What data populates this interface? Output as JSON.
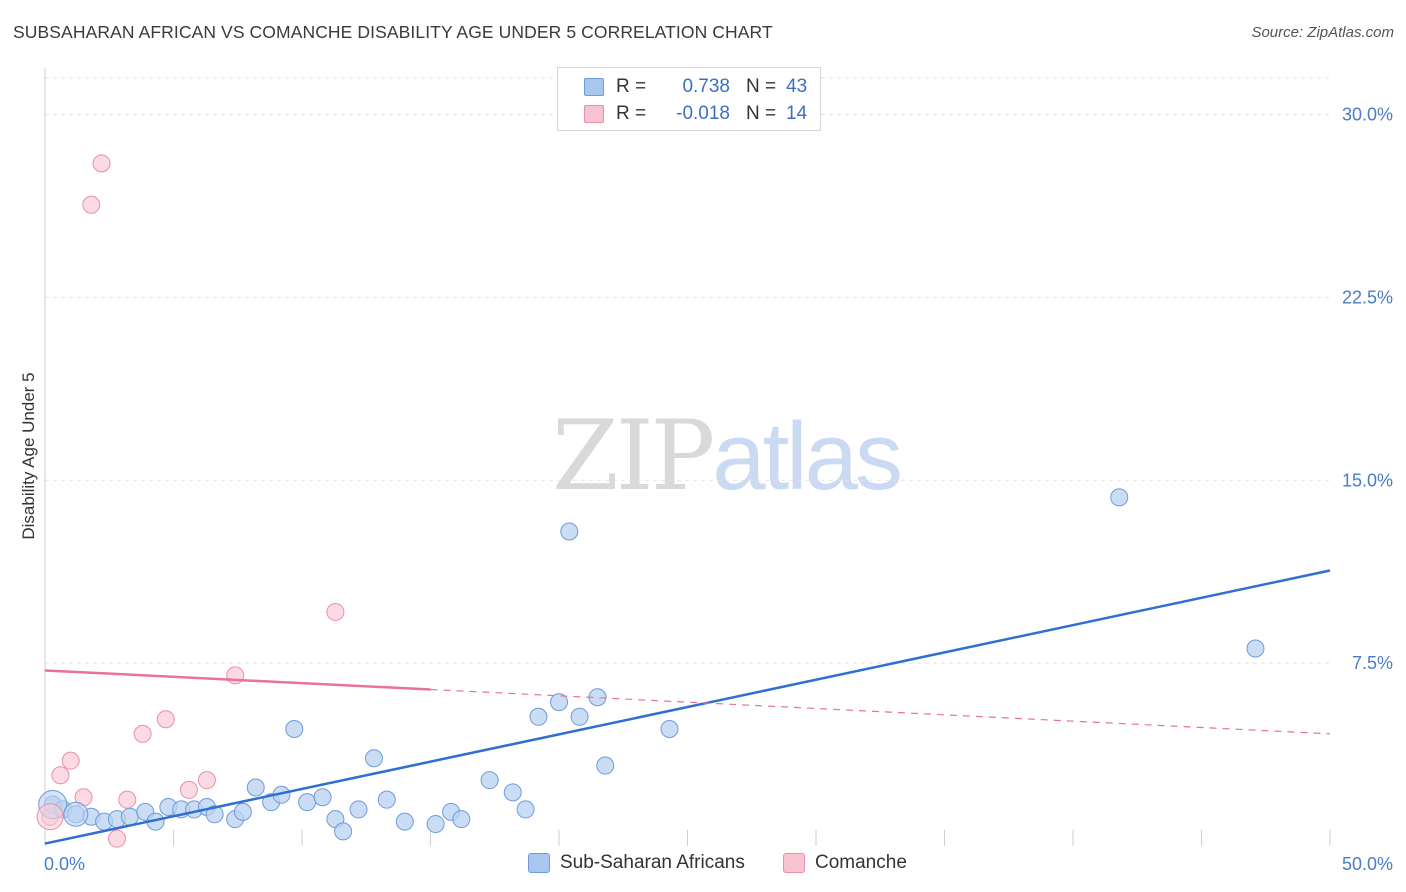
{
  "header": {
    "title": "SUBSAHARAN AFRICAN VS COMANCHE DISABILITY AGE UNDER 5 CORRELATION CHART",
    "source": "Source: ZipAtlas.com"
  },
  "watermark": {
    "zip": "ZIP",
    "atlas": "atlas"
  },
  "legend": {
    "rows": [
      {
        "r_label": "R =",
        "r_value": "0.738",
        "n_label": "N =",
        "n_value": "43",
        "color": "#a8c6ee",
        "border": "#6f9bd9"
      },
      {
        "r_label": "R =",
        "r_value": "-0.018",
        "n_label": "N =",
        "n_value": "14",
        "color": "#f7c3d1",
        "border": "#e98fa9"
      }
    ]
  },
  "bottom_legend": [
    {
      "label": "Sub-Saharan Africans",
      "color": "#a8c6ee",
      "border": "#6f9bd9"
    },
    {
      "label": "Comanche",
      "color": "#f7c3d1",
      "border": "#e98fa9"
    }
  ],
  "colors": {
    "blue_line": "#2f6fd1",
    "pink_line": "#e8729a",
    "blue_fill": "#b9d2f2",
    "blue_stroke": "#6f9bd9",
    "pink_fill": "#f9cdd9",
    "pink_stroke": "#e98fa9",
    "grid": "#e3e3e3",
    "tick_text": "#4a7cc9"
  },
  "chart_data": {
    "type": "scatter",
    "title": "SUBSAHARAN AFRICAN VS COMANCHE DISABILITY AGE UNDER 5 CORRELATION CHART",
    "xlabel": "",
    "ylabel": "Disability Age Under 5",
    "xlim": [
      0,
      50
    ],
    "ylim": [
      0,
      31.5
    ],
    "x_tick_labels": [
      "0.0%",
      "50.0%"
    ],
    "y_ticks": [
      7.5,
      15.0,
      22.5,
      30.0
    ],
    "y_tick_labels": [
      "7.5%",
      "15.0%",
      "22.5%",
      "30.0%"
    ],
    "grid": true,
    "series": [
      {
        "name": "Sub-Saharan Africans",
        "points": [
          [
            0.3,
            1.7
          ],
          [
            0.7,
            1.5
          ],
          [
            1.2,
            1.3
          ],
          [
            1.8,
            1.2
          ],
          [
            2.3,
            1.0
          ],
          [
            2.8,
            1.1
          ],
          [
            3.3,
            1.2
          ],
          [
            3.9,
            1.4
          ],
          [
            4.3,
            1.0
          ],
          [
            4.8,
            1.6
          ],
          [
            5.3,
            1.5
          ],
          [
            5.8,
            1.5
          ],
          [
            6.3,
            1.6
          ],
          [
            6.6,
            1.3
          ],
          [
            7.4,
            1.1
          ],
          [
            7.7,
            1.4
          ],
          [
            8.2,
            2.4
          ],
          [
            8.8,
            1.8
          ],
          [
            9.2,
            2.1
          ],
          [
            9.7,
            4.8
          ],
          [
            10.2,
            1.8
          ],
          [
            10.8,
            2.0
          ],
          [
            11.3,
            1.1
          ],
          [
            11.6,
            0.6
          ],
          [
            12.2,
            1.5
          ],
          [
            12.8,
            3.6
          ],
          [
            13.3,
            1.9
          ],
          [
            14.0,
            1.0
          ],
          [
            15.2,
            0.9
          ],
          [
            15.8,
            1.4
          ],
          [
            16.2,
            1.1
          ],
          [
            17.3,
            2.7
          ],
          [
            18.2,
            2.2
          ],
          [
            18.7,
            1.5
          ],
          [
            19.2,
            5.3
          ],
          [
            20.0,
            5.9
          ],
          [
            20.4,
            12.9
          ],
          [
            20.8,
            5.3
          ],
          [
            21.5,
            6.1
          ],
          [
            21.8,
            3.3
          ],
          [
            24.3,
            4.8
          ],
          [
            41.8,
            14.3
          ],
          [
            47.1,
            8.1
          ]
        ],
        "trend": {
          "x": [
            0,
            50
          ],
          "y": [
            0.1,
            11.3
          ]
        }
      },
      {
        "name": "Comanche",
        "points": [
          [
            0.2,
            1.2
          ],
          [
            0.6,
            2.9
          ],
          [
            1.0,
            3.5
          ],
          [
            1.5,
            2.0
          ],
          [
            1.8,
            26.3
          ],
          [
            2.2,
            28.0
          ],
          [
            2.8,
            0.3
          ],
          [
            3.2,
            1.9
          ],
          [
            3.8,
            4.6
          ],
          [
            4.7,
            5.2
          ],
          [
            5.6,
            2.3
          ],
          [
            6.3,
            2.7
          ],
          [
            7.4,
            7.0
          ],
          [
            11.3,
            9.6
          ]
        ],
        "trend": {
          "x": [
            0,
            50
          ],
          "y": [
            7.2,
            4.6
          ],
          "solid_until_x": 15
        }
      }
    ]
  }
}
